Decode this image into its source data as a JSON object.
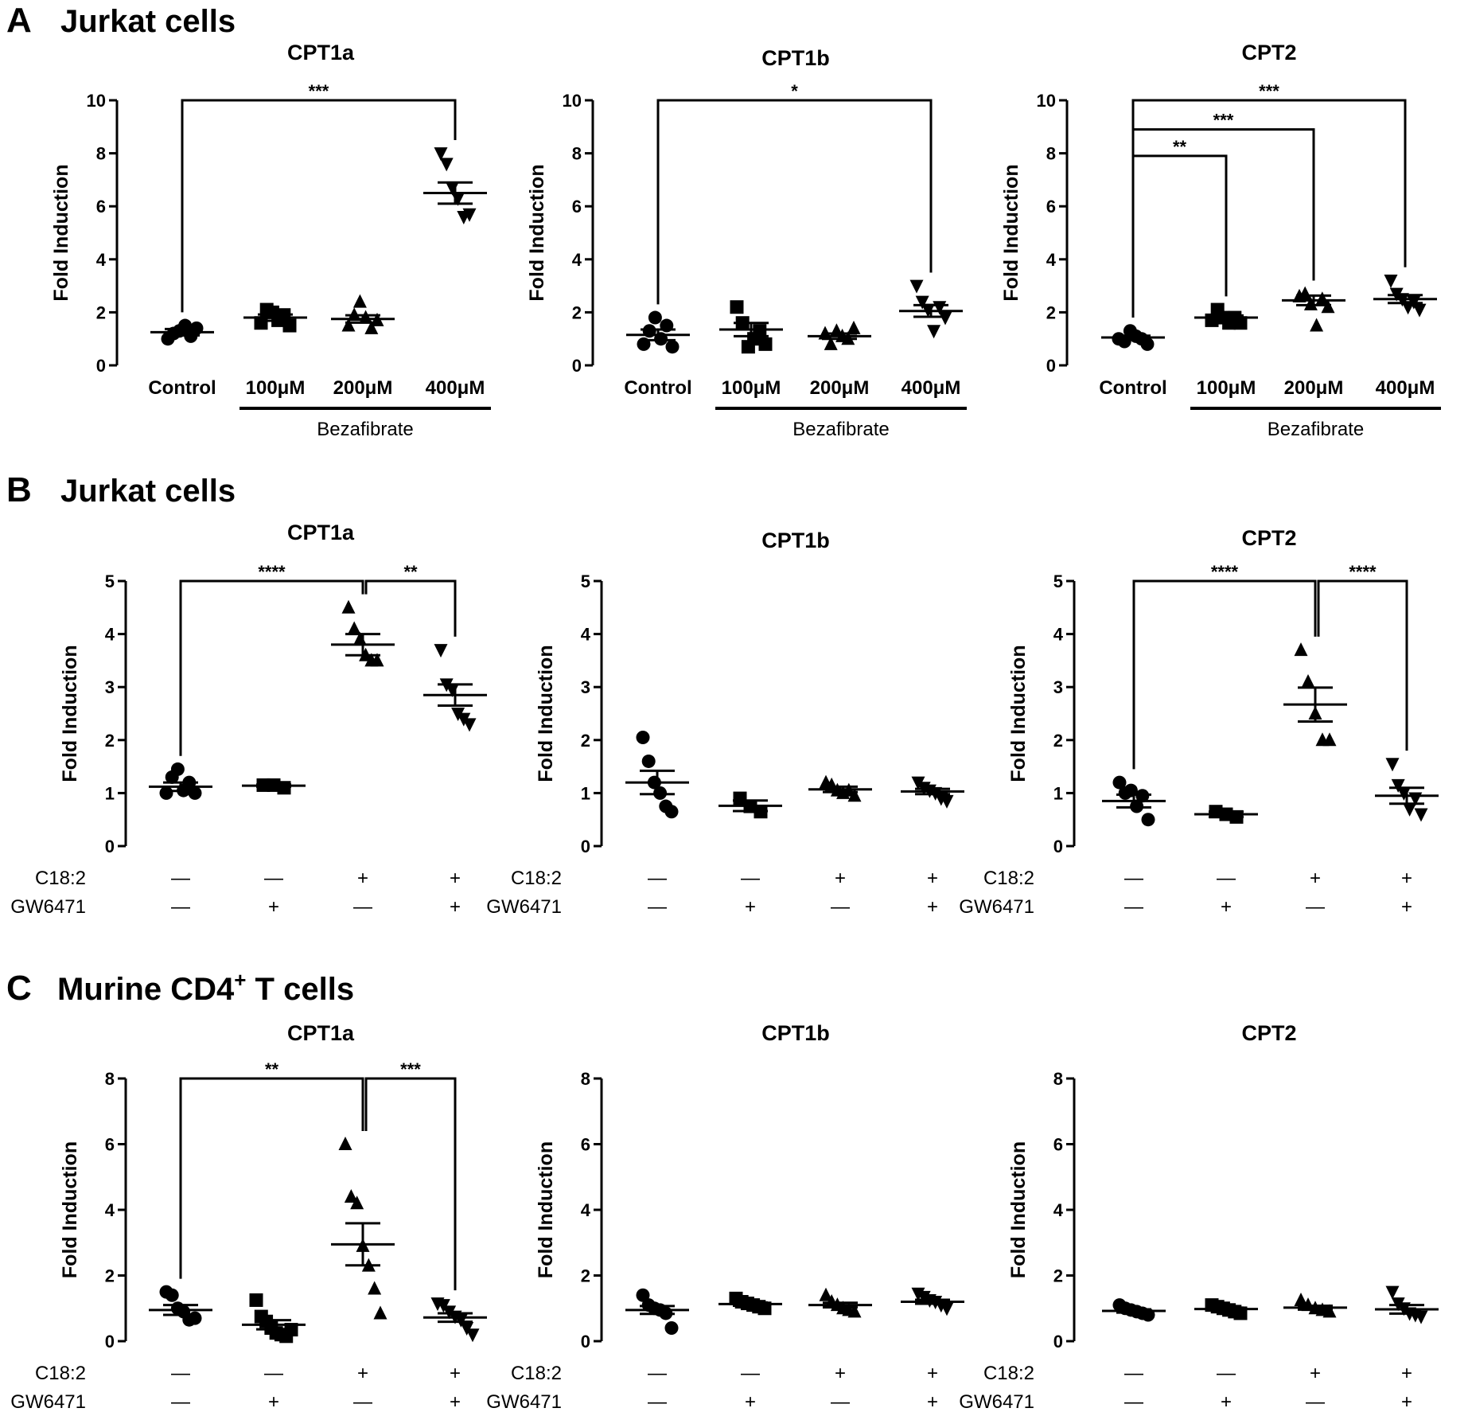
{
  "panels": [
    {
      "letter": "A",
      "title": "Jurkat cells",
      "charts": [
        {
          "title": "CPT1a"
        },
        {
          "title": "CPT1b"
        },
        {
          "title": "CPT2"
        }
      ]
    },
    {
      "letter": "B",
      "title": "Jurkat cells",
      "charts": [
        {
          "title": "CPT1a"
        },
        {
          "title": "CPT1b"
        },
        {
          "title": "CPT2"
        }
      ]
    },
    {
      "letter": "C",
      "title": "Murine CD4",
      "title_sup": "+",
      "title_rest": " T cells",
      "charts": [
        {
          "title": "CPT1a"
        },
        {
          "title": "CPT1b"
        },
        {
          "title": "CPT2"
        }
      ]
    }
  ],
  "chart_data": [
    {
      "panel": "A",
      "type": "scatter",
      "title": "CPT1a",
      "ylabel": "Fold Induction",
      "ylim": [
        0,
        10
      ],
      "yticks": [
        0,
        2,
        4,
        6,
        8,
        10
      ],
      "categories": [
        "Control",
        "100μM",
        "200μM",
        "400μM"
      ],
      "group_label": "Bezafibrate",
      "markers": [
        "circle",
        "square",
        "triangle-up",
        "triangle-down"
      ],
      "points": [
        [
          1.0,
          1.2,
          1.3,
          1.5,
          1.1,
          1.4
        ],
        [
          1.6,
          2.1,
          2.0,
          1.7,
          1.9,
          1.5
        ],
        [
          1.5,
          1.9,
          2.4,
          1.8,
          1.4,
          1.7
        ],
        [
          8.0,
          7.6,
          6.7,
          6.3,
          5.6,
          5.7
        ]
      ],
      "means": [
        1.25,
        1.8,
        1.75,
        6.5
      ],
      "sems": [
        0.12,
        0.12,
        0.14,
        0.4
      ],
      "significance": [
        {
          "from": 0,
          "to": 3,
          "label": "***",
          "y": 10.0
        }
      ]
    },
    {
      "panel": "A",
      "type": "scatter",
      "title": "CPT1b",
      "ylabel": "Fold Induction",
      "ylim": [
        0,
        10
      ],
      "yticks": [
        0,
        2,
        4,
        6,
        8,
        10
      ],
      "categories": [
        "Control",
        "100μM",
        "200μM",
        "400μM"
      ],
      "group_label": "Bezafibrate",
      "markers": [
        "circle",
        "square",
        "triangle-up",
        "triangle-down"
      ],
      "points": [
        [
          0.8,
          1.3,
          1.8,
          1.0,
          1.5,
          0.7
        ],
        [
          2.2,
          1.6,
          0.7,
          1.0,
          1.3,
          0.8
        ],
        [
          1.2,
          0.8,
          1.3,
          1.1,
          1.0,
          1.4
        ],
        [
          3.0,
          2.4,
          2.1,
          1.3,
          2.2,
          1.8
        ]
      ],
      "means": [
        1.15,
        1.35,
        1.1,
        2.05
      ],
      "sems": [
        0.2,
        0.25,
        0.1,
        0.22
      ],
      "significance": [
        {
          "from": 0,
          "to": 3,
          "label": "*",
          "y": 10.0
        }
      ]
    },
    {
      "panel": "A",
      "type": "scatter",
      "title": "CPT2",
      "ylabel": "Fold Induction",
      "ylim": [
        0,
        10
      ],
      "yticks": [
        0,
        2,
        4,
        6,
        8,
        10
      ],
      "categories": [
        "Control",
        "100μM",
        "200μM",
        "400μM"
      ],
      "group_label": "Bezafibrate",
      "markers": [
        "circle",
        "square",
        "triangle-up",
        "triangle-down"
      ],
      "points": [
        [
          1.0,
          0.9,
          1.3,
          1.1,
          1.0,
          0.8
        ],
        [
          1.7,
          2.1,
          1.8,
          1.6,
          1.8,
          1.6
        ],
        [
          2.6,
          2.7,
          2.3,
          1.5,
          2.5,
          2.2
        ],
        [
          3.2,
          2.7,
          2.5,
          2.2,
          2.4,
          2.1
        ]
      ],
      "means": [
        1.05,
        1.8,
        2.45,
        2.5
      ],
      "sems": [
        0.07,
        0.08,
        0.18,
        0.15
      ],
      "significance": [
        {
          "from": 0,
          "to": 1,
          "label": "**",
          "y": 7.9
        },
        {
          "from": 0,
          "to": 2,
          "label": "***",
          "y": 8.9
        },
        {
          "from": 0,
          "to": 3,
          "label": "***",
          "y": 10.0
        }
      ]
    },
    {
      "panel": "B",
      "type": "scatter",
      "title": "CPT1a",
      "ylabel": "Fold Induction",
      "ylim": [
        0,
        5
      ],
      "yticks": [
        0,
        1,
        2,
        3,
        4,
        5
      ],
      "conditions": [
        {
          "name": "C18:2",
          "values": [
            "—",
            "—",
            "+",
            "+"
          ]
        },
        {
          "name": "GW6471",
          "values": [
            "—",
            "+",
            "—",
            "+"
          ]
        }
      ],
      "markers": [
        "circle",
        "square",
        "triangle-up",
        "triangle-down"
      ],
      "points": [
        [
          1.0,
          1.3,
          1.45,
          1.05,
          1.2,
          1.0
        ],
        [
          1.15,
          1.15,
          1.1
        ],
        [
          4.5,
          4.1,
          3.9,
          3.6,
          3.5,
          3.5
        ],
        [
          3.7,
          3.05,
          2.95,
          2.5,
          2.4,
          2.3
        ]
      ],
      "means": [
        1.12,
        1.14,
        3.8,
        2.85
      ],
      "sems": [
        0.08,
        0.02,
        0.2,
        0.2
      ],
      "significance": [
        {
          "from": 0,
          "to": 2,
          "label": "****",
          "y": 5.0
        },
        {
          "from": 2,
          "to": 3,
          "label": "**",
          "y": 5.0
        }
      ]
    },
    {
      "panel": "B",
      "type": "scatter",
      "title": "CPT1b",
      "ylabel": "Fold Induction",
      "ylim": [
        0,
        5
      ],
      "yticks": [
        0,
        1,
        2,
        3,
        4,
        5
      ],
      "conditions": [
        {
          "name": "C18:2",
          "values": [
            "—",
            "—",
            "+",
            "+"
          ]
        },
        {
          "name": "GW6471",
          "values": [
            "—",
            "+",
            "—",
            "+"
          ]
        }
      ],
      "markers": [
        "circle",
        "square",
        "triangle-up",
        "triangle-down"
      ],
      "points": [
        [
          2.05,
          1.6,
          1.2,
          1.0,
          0.75,
          0.65
        ],
        [
          0.9,
          0.75,
          0.65
        ],
        [
          1.2,
          1.15,
          1.05,
          1.0,
          1.05,
          0.95
        ],
        [
          1.2,
          1.1,
          1.05,
          1.0,
          0.9,
          0.85
        ]
      ],
      "means": [
        1.2,
        0.76,
        1.07,
        1.03
      ],
      "sems": [
        0.22,
        0.1,
        0.05,
        0.05
      ],
      "significance": []
    },
    {
      "panel": "B",
      "type": "scatter",
      "title": "CPT2",
      "ylabel": "Fold Induction",
      "ylim": [
        0,
        5
      ],
      "yticks": [
        0,
        1,
        2,
        3,
        4,
        5
      ],
      "conditions": [
        {
          "name": "C18:2",
          "values": [
            "—",
            "—",
            "+",
            "+"
          ]
        },
        {
          "name": "GW6471",
          "values": [
            "—",
            "+",
            "—",
            "+"
          ]
        }
      ],
      "markers": [
        "circle",
        "square",
        "triangle-up",
        "triangle-down"
      ],
      "points": [
        [
          1.2,
          1.0,
          1.05,
          0.75,
          0.95,
          0.5
        ],
        [
          0.65,
          0.6,
          0.55
        ],
        [
          3.7,
          3.1,
          2.5,
          2.0,
          2.0
        ],
        [
          1.55,
          1.15,
          1.0,
          0.7,
          0.9,
          0.6
        ]
      ],
      "means": [
        0.85,
        0.6,
        2.67,
        0.95
      ],
      "sems": [
        0.12,
        0.05,
        0.32,
        0.15
      ],
      "significance": [
        {
          "from": 0,
          "to": 2,
          "label": "****",
          "y": 5.0
        },
        {
          "from": 2,
          "to": 3,
          "label": "****",
          "y": 5.0
        }
      ]
    },
    {
      "panel": "C",
      "type": "scatter",
      "title": "CPT1a",
      "ylabel": "Fold Induction",
      "ylim": [
        0,
        8
      ],
      "yticks": [
        0,
        2,
        4,
        6,
        8
      ],
      "conditions": [
        {
          "name": "C18:2",
          "values": [
            "—",
            "—",
            "+",
            "+"
          ]
        },
        {
          "name": "GW6471",
          "values": [
            "—",
            "+",
            "—",
            "+"
          ]
        }
      ],
      "markers": [
        "circle",
        "square",
        "triangle-up",
        "triangle-down"
      ],
      "points": [
        [
          1.5,
          1.4,
          1.0,
          0.9,
          0.65,
          0.7
        ],
        [
          1.25,
          0.75,
          0.6,
          0.4,
          0.25,
          0.2,
          0.15,
          0.35
        ],
        [
          6.0,
          4.4,
          4.2,
          2.9,
          2.3,
          1.6,
          0.85
        ],
        [
          1.15,
          1.1,
          0.9,
          0.75,
          0.65,
          0.4,
          0.2
        ]
      ],
      "means": [
        0.95,
        0.5,
        2.95,
        0.72
      ],
      "sems": [
        0.15,
        0.14,
        0.64,
        0.13
      ],
      "significance": [
        {
          "from": 0,
          "to": 2,
          "label": "**",
          "y": 8.0
        },
        {
          "from": 2,
          "to": 3,
          "label": "***",
          "y": 8.0
        }
      ]
    },
    {
      "panel": "C",
      "type": "scatter",
      "title": "CPT1b",
      "ylabel": "Fold Induction",
      "ylim": [
        0,
        8
      ],
      "yticks": [
        0,
        2,
        4,
        6,
        8
      ],
      "conditions": [
        {
          "name": "C18:2",
          "values": [
            "—",
            "—",
            "+",
            "+"
          ]
        },
        {
          "name": "GW6471",
          "values": [
            "—",
            "+",
            "—",
            "+"
          ]
        }
      ],
      "markers": [
        "circle",
        "square",
        "triangle-up",
        "triangle-down"
      ],
      "points": [
        [
          1.4,
          1.1,
          1.0,
          0.95,
          0.85,
          0.4
        ],
        [
          1.3,
          1.2,
          1.15,
          1.1,
          1.05,
          1.0
        ],
        [
          1.4,
          1.2,
          1.1,
          1.0,
          0.95,
          0.9
        ],
        [
          1.45,
          1.35,
          1.25,
          1.2,
          1.1,
          1.0
        ]
      ],
      "means": [
        0.95,
        1.13,
        1.1,
        1.2
      ],
      "sems": [
        0.12,
        0.05,
        0.07,
        0.06
      ],
      "significance": []
    },
    {
      "panel": "C",
      "type": "scatter",
      "title": "CPT2",
      "ylabel": "Fold Induction",
      "ylim": [
        0,
        8
      ],
      "yticks": [
        0,
        2,
        4,
        6,
        8
      ],
      "conditions": [
        {
          "name": "C18:2",
          "values": [
            "—",
            "—",
            "+",
            "+"
          ]
        },
        {
          "name": "GW6471",
          "values": [
            "—",
            "+",
            "—",
            "+"
          ]
        }
      ],
      "markers": [
        "circle",
        "square",
        "triangle-up",
        "triangle-down"
      ],
      "points": [
        [
          1.1,
          1.0,
          0.95,
          0.9,
          0.85,
          0.8
        ],
        [
          1.1,
          1.05,
          1.0,
          0.95,
          0.9,
          0.85
        ],
        [
          1.25,
          1.1,
          1.0,
          0.95,
          0.9
        ],
        [
          1.5,
          1.15,
          1.0,
          0.85,
          0.8,
          0.75
        ]
      ],
      "means": [
        0.92,
        0.98,
        1.02,
        0.97
      ],
      "sems": [
        0.05,
        0.04,
        0.06,
        0.13
      ],
      "significance": []
    }
  ]
}
